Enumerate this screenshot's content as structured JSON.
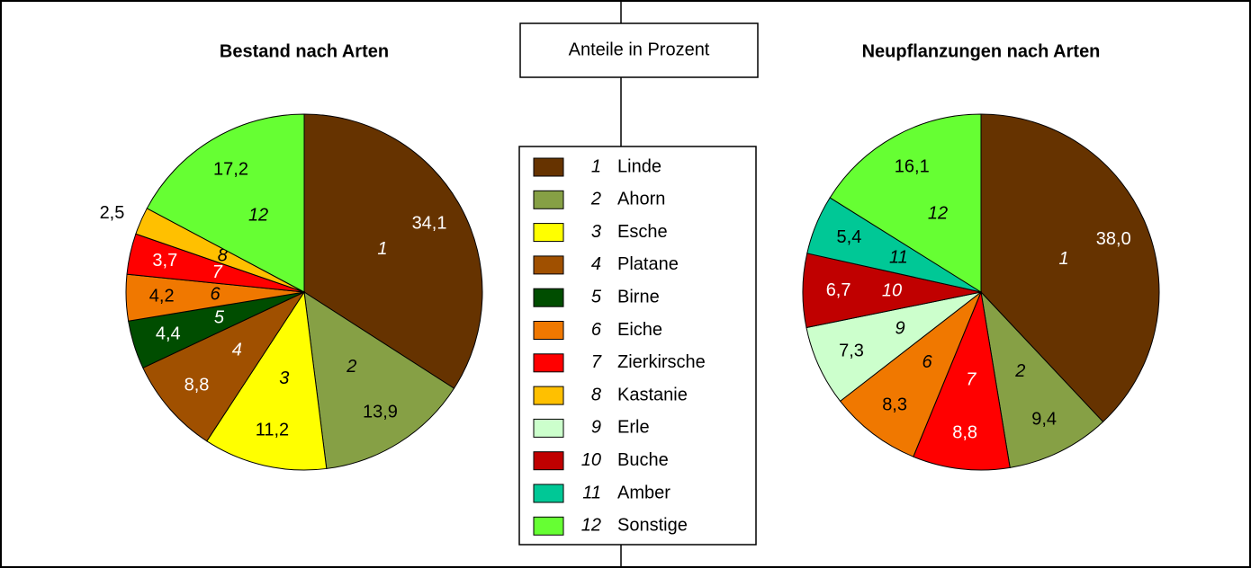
{
  "note": "Anteile in Prozent",
  "legend": {
    "items": [
      {
        "number": "1",
        "name": "Linde",
        "color": "#663300"
      },
      {
        "number": "2",
        "name": "Ahorn",
        "color": "#86a045"
      },
      {
        "number": "3",
        "name": "Esche",
        "color": "#ffff00"
      },
      {
        "number": "4",
        "name": "Platane",
        "color": "#a05000"
      },
      {
        "number": "5",
        "name": "Birne",
        "color": "#004d00"
      },
      {
        "number": "6",
        "name": "Eiche",
        "color": "#f07800"
      },
      {
        "number": "7",
        "name": "Zierkirsche",
        "color": "#ff0000"
      },
      {
        "number": "8",
        "name": "Kastanie",
        "color": "#ffc000"
      },
      {
        "number": "9",
        "name": "Erle",
        "color": "#ccffcc"
      },
      {
        "number": "10",
        "name": "Buche",
        "color": "#c00000"
      },
      {
        "number": "11",
        "name": "Amber",
        "color": "#00c896"
      },
      {
        "number": "12",
        "name": "Sonstige",
        "color": "#66ff33"
      }
    ]
  },
  "chart_data": [
    {
      "type": "pie",
      "title": "Bestand nach Arten",
      "categories": [
        "1",
        "2",
        "3",
        "4",
        "5",
        "6",
        "7",
        "8",
        "12"
      ],
      "values": [
        34.1,
        13.9,
        11.2,
        8.8,
        4.4,
        4.2,
        3.7,
        2.5,
        17.2
      ],
      "value_labels": [
        "34,1",
        "13,9",
        "11,2",
        "8,8",
        "4,4",
        "4,2",
        "3,7",
        "2,5",
        "17,2"
      ],
      "colors": [
        "#663300",
        "#86a045",
        "#ffff00",
        "#a05000",
        "#004d00",
        "#f07800",
        "#ff0000",
        "#ffc000",
        "#66ff33"
      ]
    },
    {
      "type": "pie",
      "title": "Neupflanzungen nach Arten",
      "categories": [
        "1",
        "2",
        "7",
        "6",
        "9",
        "10",
        "11",
        "12"
      ],
      "values": [
        38.0,
        9.4,
        8.8,
        8.3,
        7.3,
        6.7,
        5.4,
        16.1
      ],
      "value_labels": [
        "38,0",
        "9,4",
        "8,8",
        "8,3",
        "7,3",
        "6,7",
        "5,4",
        "16,1"
      ],
      "colors": [
        "#663300",
        "#86a045",
        "#ff0000",
        "#f07800",
        "#ccffcc",
        "#c00000",
        "#00c896",
        "#66ff33"
      ]
    }
  ]
}
